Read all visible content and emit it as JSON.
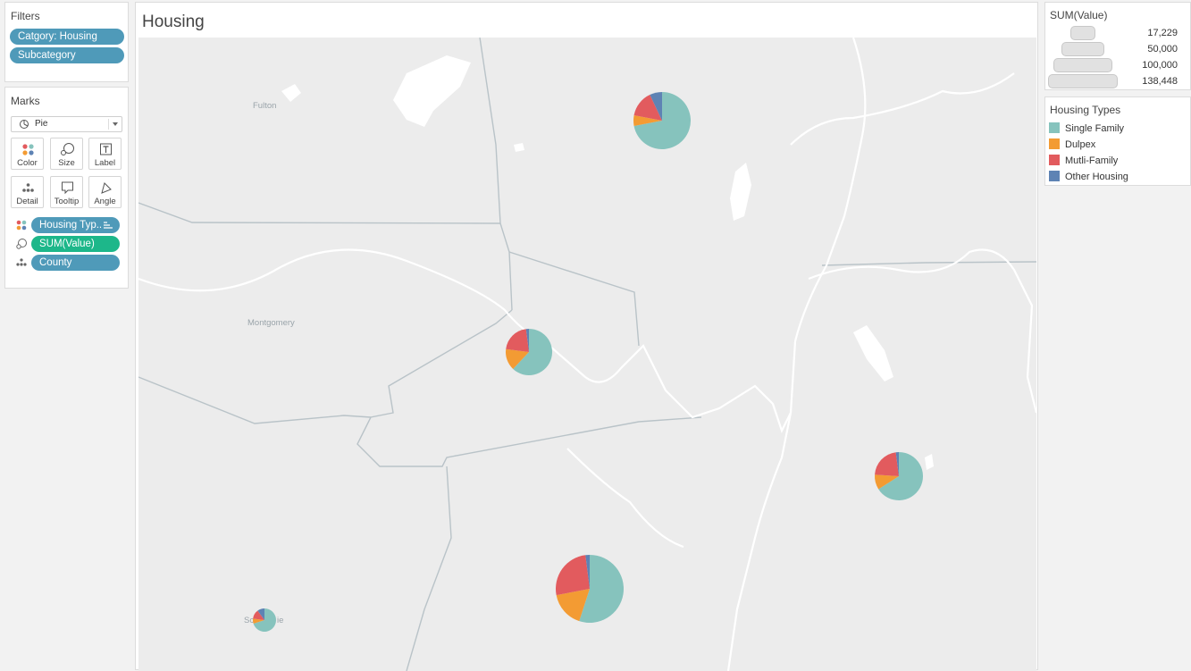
{
  "filters": {
    "title": "Filters",
    "pills": [
      "Catgory: Housing",
      "Subcategory"
    ]
  },
  "marks": {
    "title": "Marks",
    "mark_type": "Pie",
    "buttons": [
      {
        "label": "Color",
        "icon": "color-dots-icon"
      },
      {
        "label": "Size",
        "icon": "size-icon"
      },
      {
        "label": "Label",
        "icon": "label-icon"
      },
      {
        "label": "Detail",
        "icon": "detail-icon"
      },
      {
        "label": "Tooltip",
        "icon": "tooltip-icon"
      },
      {
        "label": "Angle",
        "icon": "angle-icon"
      }
    ],
    "fields": [
      {
        "label": "Housing Typ..",
        "icon": "color-dots-icon",
        "color": "#4f9ab9"
      },
      {
        "label": "SUM(Value)",
        "icon": "size-icon",
        "color": "#1db78a"
      },
      {
        "label": "County",
        "icon": "detail-icon",
        "color": "#4f9ab9"
      }
    ]
  },
  "view": {
    "title": "Housing",
    "map_labels": [
      "Fulton",
      "Montgomery",
      "Sc",
      "ie"
    ]
  },
  "size_legend": {
    "title": "SUM(Value)",
    "items": [
      "17,229",
      "50,000",
      "100,000",
      "138,448"
    ]
  },
  "color_legend": {
    "title": "Housing Types",
    "items": [
      {
        "label": "Single Family",
        "color": "#86c3bd"
      },
      {
        "label": "Dulpex",
        "color": "#f39b33"
      },
      {
        "label": "Mutli-Family",
        "color": "#e25b5e"
      },
      {
        "label": "Other Housing",
        "color": "#5e83b4"
      }
    ]
  },
  "pies": [
    {
      "county": "",
      "slices": [
        0.72,
        0.06,
        0.15,
        0.07
      ]
    },
    {
      "county": "",
      "slices": [
        0.62,
        0.15,
        0.21,
        0.02
      ]
    },
    {
      "county": "",
      "slices": [
        0.66,
        0.1,
        0.22,
        0.02
      ]
    },
    {
      "county": "",
      "slices": [
        0.55,
        0.17,
        0.26,
        0.02
      ]
    },
    {
      "county": "",
      "slices": [
        0.7,
        0.07,
        0.13,
        0.1
      ]
    }
  ]
}
